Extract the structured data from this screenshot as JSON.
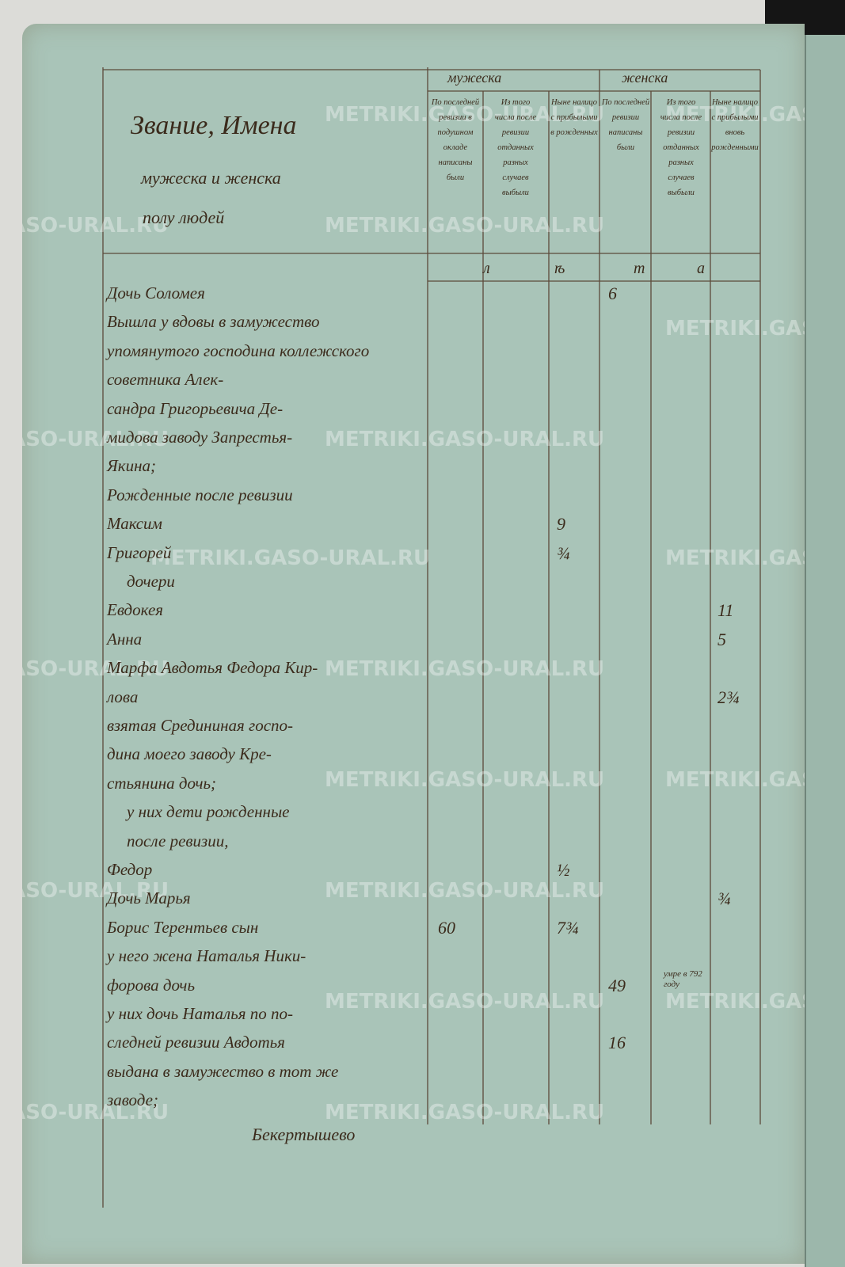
{
  "header": {
    "title_lines": [
      "Звание, Имена",
      "мужеска и женска",
      "полу людей"
    ],
    "groups": [
      "мужеска",
      "женска"
    ],
    "columns": [
      "По последней ревизии в подушном окладе написаны были",
      "Из того числа после ревизии отданных разных случаев выбыли",
      "Ныне налицо с прибылыми в рожденных",
      "По последней ревизии написаны были",
      "Из того числа после ревизии отданных разных случаев выбыли",
      "Ныне налицо с прибылыми вновь рожденными"
    ],
    "age_label": [
      "л",
      "ѣ",
      "т",
      "а"
    ]
  },
  "entries": [
    {
      "text": "Дочь Соломея",
      "cells": {
        "3": "6"
      }
    },
    {
      "text": "Вышла у вдовы в замужество"
    },
    {
      "text": "упомянутого господина коллежского"
    },
    {
      "text": "советника Алек-"
    },
    {
      "text": "сандра Григорьевича Де-"
    },
    {
      "text": "мидова заводу Запрестья-"
    },
    {
      "text": "Якина;"
    },
    {
      "text": "Рожденные после ревизии"
    },
    {
      "text": "Максим",
      "cells": {
        "2": "9"
      }
    },
    {
      "text": "Григорей",
      "cells": {
        "2": "¾"
      }
    },
    {
      "text": "дочери",
      "indent": true
    },
    {
      "text": "Евдокея",
      "cells": {
        "5": "11"
      }
    },
    {
      "text": "Анна",
      "cells": {
        "5": "5"
      }
    },
    {
      "text": "Марфа Авдотья Федора Кир-"
    },
    {
      "text": "лова",
      "cells": {
        "5": "2¾"
      }
    },
    {
      "text": "взятая Средининая госпо-"
    },
    {
      "text": "дина моего заводу Кре-"
    },
    {
      "text": "стьянина дочь;"
    },
    {
      "text": "у них дети рожденные",
      "indent": true
    },
    {
      "text": "после ревизии,",
      "indent": true
    },
    {
      "text": "Федор",
      "cells": {
        "2": "½"
      }
    },
    {
      "text": "Дочь Марья",
      "cells": {
        "5": "¾"
      }
    },
    {
      "text": "Борис Терентьев сын",
      "cells": {
        "0": "60",
        "2": "7¾"
      }
    },
    {
      "text": "у него жена Наталья Ники-"
    },
    {
      "text": "форова дочь",
      "cells": {
        "3": "49",
        "4": "умре в 792 году"
      }
    },
    {
      "text": "у них дочь Наталья по по-"
    },
    {
      "text": "следней ревизии Авдотья",
      "cells": {
        "3": "16"
      }
    },
    {
      "text": "выдана в замужество в тот же"
    },
    {
      "text": "заводе;"
    }
  ],
  "signature": "Бекертышево",
  "watermark": "METRIKI.GASO-URAL.RU"
}
